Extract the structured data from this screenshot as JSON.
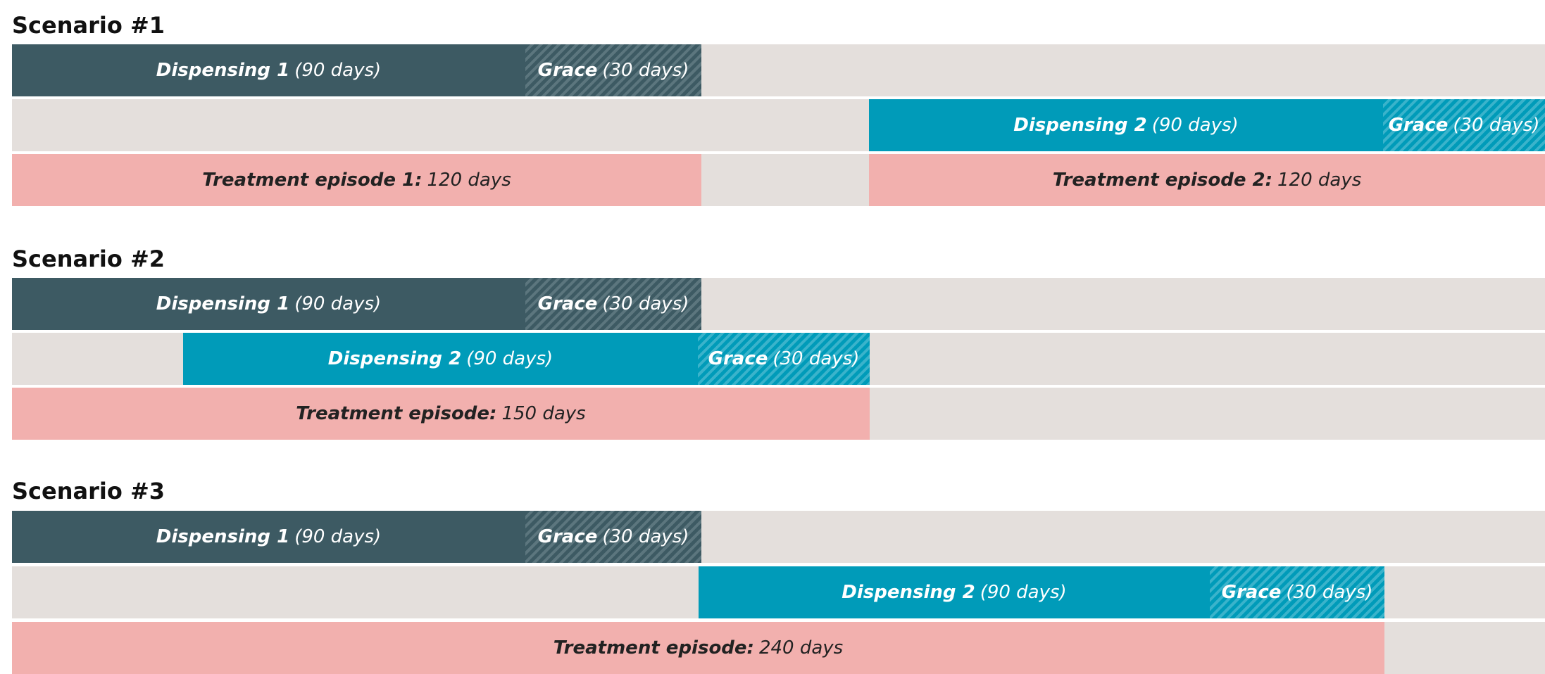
{
  "scenarios": [
    {
      "title": "Scenario #1",
      "rows": [
        [
          {
            "label": "Dispensing 1",
            "detail": "(90 days)"
          },
          {
            "label": "Grace",
            "detail": "(30 days)"
          }
        ],
        [
          {
            "label": "Dispensing 2",
            "detail": "(90 days)"
          },
          {
            "label": "Grace",
            "detail": "(30 days)"
          }
        ],
        [
          {
            "label": "Treatment episode 1:",
            "detail": "120 days"
          },
          {
            "label": "Treatment episode 2:",
            "detail": "120 days"
          }
        ]
      ]
    },
    {
      "title": "Scenario #2",
      "rows": [
        [
          {
            "label": "Dispensing 1",
            "detail": "(90 days)"
          },
          {
            "label": "Grace",
            "detail": "(30 days)"
          }
        ],
        [
          {
            "label": "Dispensing 2",
            "detail": "(90 days)"
          },
          {
            "label": "Grace",
            "detail": "(30 days)"
          }
        ],
        [
          {
            "label": "Treatment episode:",
            "detail": "150 days"
          }
        ]
      ]
    },
    {
      "title": "Scenario #3",
      "rows": [
        [
          {
            "label": "Dispensing 1",
            "detail": "(90 days)"
          },
          {
            "label": "Grace",
            "detail": "(30 days)"
          }
        ],
        [
          {
            "label": "Dispensing 2",
            "detail": "(90 days)"
          },
          {
            "label": "Grace",
            "detail": "(30 days)"
          }
        ],
        [
          {
            "label": "Treatment episode:",
            "detail": "240 days"
          }
        ]
      ]
    }
  ]
}
